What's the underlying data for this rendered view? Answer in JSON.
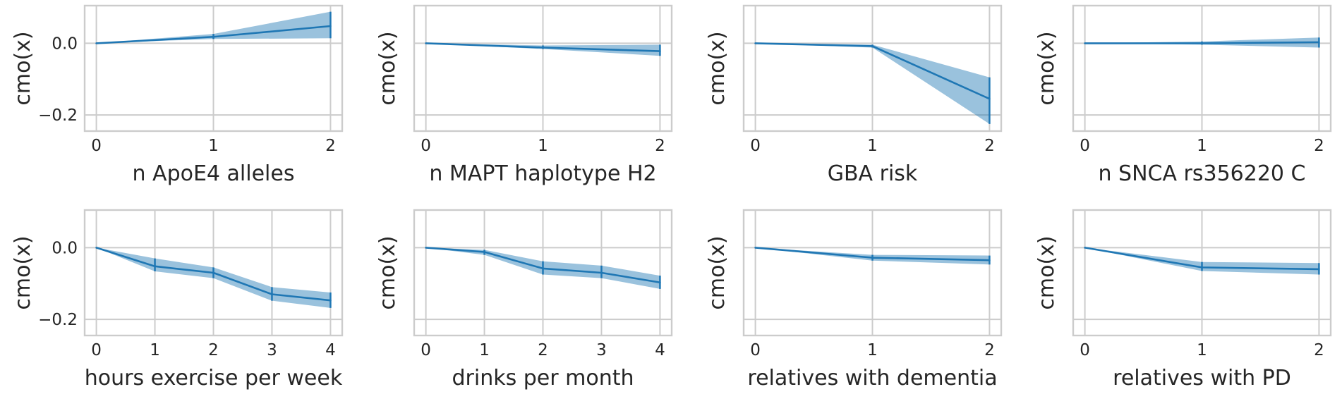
{
  "figure": {
    "y_ticks": [
      0.0,
      -0.2
    ],
    "y_tick_labels": [
      "0.0",
      "−0.2"
    ],
    "line_color": "#1f77b4",
    "band_color": "#1f77b4",
    "grid_color": "#cccccc"
  },
  "chart_data": [
    {
      "type": "line",
      "ylabel": "cmo(x)",
      "xlabel": "n ApoE4 alleles",
      "x": [
        0,
        1,
        2
      ],
      "xlim": [
        -0.1,
        2.1
      ],
      "ylim": [
        -0.245,
        0.105
      ],
      "series": [
        {
          "name": "cmo",
          "values": [
            0.0,
            0.018,
            0.048
          ],
          "lower": [
            0.0,
            0.012,
            0.014
          ],
          "upper": [
            0.0,
            0.026,
            0.088
          ]
        }
      ]
    },
    {
      "type": "line",
      "ylabel": "cmo(x)",
      "xlabel": "n MAPT haplotype H2",
      "x": [
        0,
        1,
        2
      ],
      "xlim": [
        -0.1,
        2.1
      ],
      "ylim": [
        -0.245,
        0.105
      ],
      "series": [
        {
          "name": "cmo",
          "values": [
            0.0,
            -0.012,
            -0.022
          ],
          "lower": [
            0.0,
            -0.016,
            -0.035
          ],
          "upper": [
            0.0,
            -0.006,
            -0.004
          ]
        }
      ]
    },
    {
      "type": "line",
      "ylabel": "cmo(x)",
      "xlabel": "GBA risk",
      "x": [
        0,
        1,
        2
      ],
      "xlim": [
        -0.1,
        2.1
      ],
      "ylim": [
        -0.245,
        0.105
      ],
      "series": [
        {
          "name": "cmo",
          "values": [
            0.0,
            -0.008,
            -0.155
          ],
          "lower": [
            0.0,
            -0.012,
            -0.225
          ],
          "upper": [
            0.0,
            -0.004,
            -0.095
          ]
        }
      ]
    },
    {
      "type": "line",
      "ylabel": "cmo(x)",
      "xlabel": "n SNCA rs356220 C",
      "x": [
        0,
        1,
        2
      ],
      "xlim": [
        -0.1,
        2.1
      ],
      "ylim": [
        -0.245,
        0.105
      ],
      "series": [
        {
          "name": "cmo",
          "values": [
            0.0,
            0.0,
            0.003
          ],
          "lower": [
            0.0,
            -0.004,
            -0.012
          ],
          "upper": [
            0.0,
            0.005,
            0.016
          ]
        }
      ]
    },
    {
      "type": "line",
      "ylabel": "cmo(x)",
      "xlabel": "hours exercise per week",
      "x": [
        0,
        1,
        2,
        3,
        4
      ],
      "xlim": [
        -0.2,
        4.2
      ],
      "ylim": [
        -0.245,
        0.105
      ],
      "series": [
        {
          "name": "cmo",
          "values": [
            0.0,
            -0.052,
            -0.07,
            -0.13,
            -0.147
          ],
          "lower": [
            0.0,
            -0.066,
            -0.085,
            -0.148,
            -0.168
          ],
          "upper": [
            0.0,
            -0.03,
            -0.055,
            -0.11,
            -0.125
          ]
        }
      ]
    },
    {
      "type": "line",
      "ylabel": "cmo(x)",
      "xlabel": "drinks per month",
      "x": [
        0,
        1,
        2,
        3,
        4
      ],
      "xlim": [
        -0.2,
        4.2
      ],
      "ylim": [
        -0.245,
        0.105
      ],
      "series": [
        {
          "name": "cmo",
          "values": [
            0.0,
            -0.012,
            -0.058,
            -0.07,
            -0.097
          ],
          "lower": [
            0.0,
            -0.02,
            -0.075,
            -0.085,
            -0.115
          ],
          "upper": [
            0.0,
            -0.006,
            -0.038,
            -0.05,
            -0.078
          ]
        }
      ]
    },
    {
      "type": "line",
      "ylabel": "cmo(x)",
      "xlabel": "relatives with dementia",
      "x": [
        0,
        1,
        2
      ],
      "xlim": [
        -0.1,
        2.1
      ],
      "ylim": [
        -0.245,
        0.105
      ],
      "series": [
        {
          "name": "cmo",
          "values": [
            0.0,
            -0.028,
            -0.035
          ],
          "lower": [
            0.0,
            -0.036,
            -0.047
          ],
          "upper": [
            0.0,
            -0.02,
            -0.022
          ]
        }
      ]
    },
    {
      "type": "line",
      "ylabel": "cmo(x)",
      "xlabel": "relatives with PD",
      "x": [
        0,
        1,
        2
      ],
      "xlim": [
        -0.1,
        2.1
      ],
      "ylim": [
        -0.245,
        0.105
      ],
      "series": [
        {
          "name": "cmo",
          "values": [
            0.0,
            -0.055,
            -0.06
          ],
          "lower": [
            0.0,
            -0.065,
            -0.075
          ],
          "upper": [
            0.0,
            -0.04,
            -0.043
          ]
        }
      ]
    }
  ]
}
